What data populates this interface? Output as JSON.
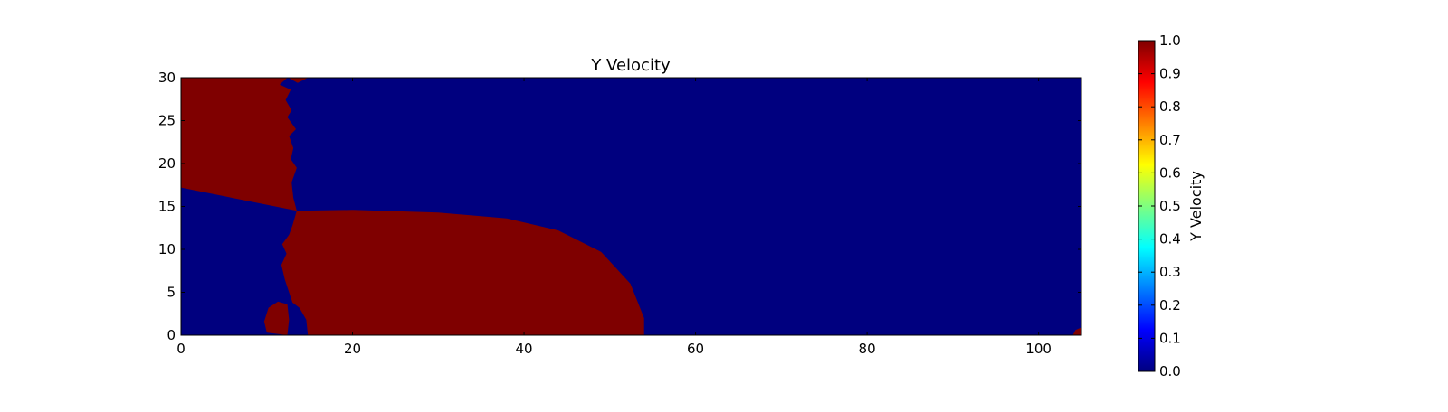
{
  "chart_data": {
    "type": "heatmap",
    "title": "Y Velocity",
    "xlabel": "",
    "ylabel": "",
    "xlim": [
      0,
      105
    ],
    "ylim": [
      0,
      30
    ],
    "x_ticks": [
      0,
      20,
      40,
      60,
      80,
      100
    ],
    "y_ticks": [
      0,
      5,
      10,
      15,
      20,
      25,
      30
    ],
    "grid": false,
    "colormap": "jet",
    "colormap_stops": [
      "#00007f",
      "#0000ff",
      "#007fff",
      "#00ffff",
      "#7fff7f",
      "#ffff00",
      "#ff7f00",
      "#ff0000",
      "#7f0000"
    ],
    "background_value": 0.0,
    "colorbar": {
      "label": "Y Velocity",
      "range": [
        0.0,
        1.0
      ],
      "ticks": [
        "0.0",
        "0.1",
        "0.2",
        "0.3",
        "0.4",
        "0.5",
        "0.6",
        "0.7",
        "0.8",
        "0.9",
        "1.0"
      ],
      "placement": "right"
    },
    "regions": [
      {
        "name": "upper-left region",
        "value": 1.0,
        "boundary": [
          [
            0,
            17.2
          ],
          [
            13.5,
            14.5
          ],
          [
            13.1,
            16
          ],
          [
            12.9,
            17.8
          ],
          [
            13.5,
            19.5
          ],
          [
            12.8,
            20.5
          ],
          [
            13.1,
            21.8
          ],
          [
            12.6,
            23.2
          ],
          [
            13.4,
            24
          ],
          [
            12.4,
            25.4
          ],
          [
            12.9,
            26.2
          ],
          [
            12.2,
            27.4
          ],
          [
            12.8,
            28.6
          ],
          [
            11.5,
            29.2
          ],
          [
            12.4,
            30
          ],
          [
            0,
            30
          ]
        ]
      },
      {
        "name": "top notch",
        "value": 1.0,
        "boundary": [
          [
            12.5,
            30
          ],
          [
            13.6,
            29.4
          ],
          [
            14.8,
            30
          ]
        ]
      },
      {
        "name": "main lobe",
        "value": 1.0,
        "boundary": [
          [
            13.5,
            14.5
          ],
          [
            20,
            14.6
          ],
          [
            30,
            14.3
          ],
          [
            38,
            13.6
          ],
          [
            44,
            12.2
          ],
          [
            49,
            9.7
          ],
          [
            52.4,
            6
          ],
          [
            54,
            2
          ],
          [
            54,
            0
          ],
          [
            14.8,
            0
          ],
          [
            14.6,
            1.8
          ],
          [
            13.8,
            3.2
          ],
          [
            13,
            3.8
          ],
          [
            12.6,
            5
          ],
          [
            12.1,
            6.5
          ],
          [
            11.7,
            8.2
          ],
          [
            12.3,
            9.5
          ],
          [
            11.8,
            10.6
          ],
          [
            12.6,
            11.7
          ],
          [
            13,
            12.8
          ]
        ]
      },
      {
        "name": "lower-left pocket",
        "value": 1.0,
        "boundary": [
          [
            10,
            0.3
          ],
          [
            12.4,
            0
          ],
          [
            12.6,
            1.8
          ],
          [
            12.4,
            3.6
          ],
          [
            11.3,
            3.9
          ],
          [
            10.2,
            3.2
          ],
          [
            9.7,
            1.6
          ]
        ]
      },
      {
        "name": "corner spot",
        "value": 1.0,
        "boundary": [
          [
            104,
            0
          ],
          [
            105,
            0
          ],
          [
            105,
            0.9
          ],
          [
            104.3,
            0.6
          ]
        ]
      }
    ]
  }
}
